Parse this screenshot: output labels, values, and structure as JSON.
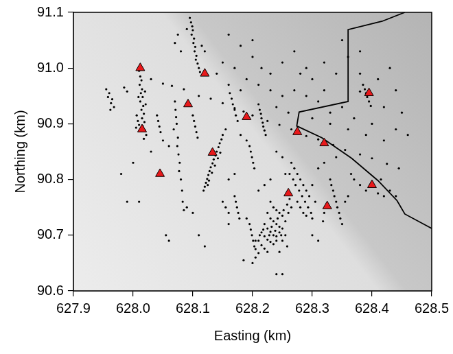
{
  "chart_data": {
    "type": "scatter",
    "x_label": "Easting (km)",
    "y_label": "Northing (km)",
    "xlim": [
      627.9,
      628.5
    ],
    "xticks": [
      627.9,
      {
        "value": 628,
        "label": "628.0"
      },
      628.1,
      628.2,
      628.3,
      628.4,
      628.5
    ],
    "ylim": [
      90.6,
      91.1
    ],
    "yticks": [
      90.6,
      90.7,
      90.8,
      90.9,
      {
        "value": 91,
        "label": "91.0"
      },
      91.1
    ],
    "grid": false,
    "series": [
      {
        "type": "scatter",
        "color": "#000000",
        "marker": "circle",
        "x": [
          628.01,
          628.012,
          628.014,
          628.011,
          628.015,
          628.013,
          628.016,
          628.012,
          628.017,
          628.014,
          628.018,
          628.015,
          628.019,
          628.016,
          628.02,
          628.008,
          628.01,
          628.005,
          628.022,
          628.018,
          628.02,
          628.009,
          628.021,
          628.006,
          627.955,
          627.96,
          627.958,
          627.965,
          627.963,
          627.968,
          627.962,
          627.985,
          627.99,
          628.095,
          628.097,
          628.099,
          628.1,
          628.098,
          628.102,
          628.101,
          628.104,
          628.103,
          628.106,
          628.105,
          628.108,
          628.11,
          628.112,
          628.09,
          628.115,
          628.12,
          628.075,
          628.07,
          628.08,
          628.03,
          628.05,
          628.065,
          628.085,
          628.11,
          628.13,
          628.15,
          628.17,
          628.185,
          628.2,
          628.225,
          628.245,
          628.265,
          628.29,
          628.31,
          628.335,
          628.355,
          628.38,
          628.4,
          628.425,
          628.445,
          628.16,
          628.18,
          628.2,
          628.215,
          628.23,
          628.25,
          628.27,
          628.29,
          628.3,
          628.32,
          628.34,
          628.36,
          628.38,
          628.41,
          628.44,
          628.43,
          628.42,
          628.45,
          628.4,
          628.37,
          628.35,
          628.33,
          628.31,
          628.29,
          628.27,
          628.25,
          628.23,
          628.21,
          628.19,
          628.17,
          628.15,
          628.14,
          628.26,
          628.24,
          628.3,
          628.36,
          628.33,
          628.39,
          628.42,
          628.28,
          628.32,
          628.35,
          628.38,
          628.2,
          628.18,
          628.16,
          628.44,
          628.46,
          628.385,
          628.388,
          628.39,
          628.392,
          628.395,
          628.398,
          628.38,
          628.21,
          628.212,
          628.214,
          628.215,
          628.217,
          628.218,
          628.22,
          628.222,
          628.162,
          628.165,
          628.167,
          628.17,
          628.172,
          628.175,
          628.07,
          628.071,
          628.072,
          628.073,
          628.068,
          628.075,
          628.074,
          628.076,
          628.078,
          628.077,
          628.08,
          628.082,
          628.083,
          628.085,
          628.04,
          628.042,
          628.044,
          628.046,
          628.15,
          628.148,
          628.145,
          628.143,
          628.14,
          628.138,
          628.135,
          628.133,
          628.13,
          628.128,
          628.126,
          628.124,
          628.122,
          628.12,
          628.118,
          628.142,
          628.137,
          628.132,
          628.127,
          628.146,
          628.125,
          628.155,
          628.1,
          628.102,
          628.104,
          628.106,
          628.108,
          628.195,
          628.197,
          628.199,
          628.201,
          628.203,
          628.17,
          628.172,
          628.174,
          628.176,
          628.178,
          628.16,
          628.23,
          628.235,
          628.24,
          628.245,
          628.25,
          628.225,
          628.23,
          628.235,
          628.24,
          628.245,
          628.25,
          628.255,
          628.22,
          628.225,
          628.23,
          628.235,
          628.24,
          628.245,
          628.215,
          628.22,
          628.225,
          628.23,
          628.235,
          628.24,
          628.21,
          628.215,
          628.22,
          628.225,
          628.205,
          628.21,
          628.248,
          628.252,
          628.258,
          628.262,
          628.228,
          628.232,
          628.238,
          628.218,
          628.242,
          628.26,
          628.265,
          628.212,
          628.205,
          628.2,
          628.195,
          628.197,
          628.199,
          628.201,
          628.203,
          628.205,
          628.19,
          628.185,
          628.25,
          628.255,
          628.258,
          628.245,
          628.27,
          628.275,
          628.28,
          628.285,
          628.29,
          628.272,
          628.278,
          628.283,
          628.288,
          628.293,
          628.28,
          628.285,
          628.29,
          628.275,
          628.295,
          628.3,
          628.268,
          628.265,
          628.262,
          628.298,
          628.305,
          628.3,
          628.33,
          628.332,
          628.335,
          628.337,
          628.34,
          628.342,
          628.345,
          628.347,
          628.35,
          628.355,
          628.36,
          628.32,
          628.318,
          628.37,
          628.38,
          628.39,
          628.41,
          628.42,
          628.43,
          628.44,
          628.415,
          628.365,
          627.98,
          627.99,
          628.01,
          628.055,
          628.06,
          628.09,
          628.1,
          628.11,
          628.12,
          628.15,
          628.155,
          628.16,
          628.24,
          628.25,
          628.3,
          628.31,
          628.0,
          628.03,
          628.05,
          628.06,
          628.16,
          628.17,
          628.18,
          628.19,
          628.24,
          628.25,
          628.255,
          628.23,
          628.22,
          628.21,
          628.31,
          628.32,
          628.34
        ],
        "values": [
          90.995,
          90.985,
          90.978,
          90.97,
          90.962,
          90.955,
          90.948,
          90.94,
          90.932,
          90.925,
          90.918,
          90.91,
          90.903,
          90.896,
          90.888,
          90.905,
          90.898,
          90.893,
          90.88,
          90.873,
          90.958,
          90.948,
          90.935,
          90.915,
          90.962,
          90.955,
          90.948,
          90.944,
          90.937,
          90.93,
          90.925,
          90.965,
          90.958,
          91.09,
          91.082,
          91.075,
          91.068,
          91.06,
          91.053,
          91.045,
          91.038,
          91.03,
          91.022,
          91.015,
          91.008,
          91.0,
          90.993,
          91.07,
          91.04,
          91.03,
          91.06,
          91.045,
          91.03,
          90.98,
          90.972,
          90.968,
          90.962,
          90.95,
          90.945,
          90.937,
          90.928,
          90.922,
          90.915,
          90.905,
          90.898,
          90.89,
          90.878,
          90.872,
          90.862,
          90.853,
          90.845,
          90.838,
          90.828,
          90.82,
          91.06,
          91.04,
          91.02,
          91.0,
          90.99,
          91.01,
          91.03,
          91.0,
          90.98,
          90.96,
          90.99,
          91.02,
          90.99,
          90.98,
          90.96,
          91.0,
          90.93,
          90.92,
          90.9,
          90.91,
          90.93,
          90.92,
          90.94,
          90.95,
          90.96,
          90.95,
          90.96,
          90.97,
          90.98,
          91.0,
          91.01,
          90.99,
          90.92,
          90.93,
          90.91,
          90.89,
          90.9,
          90.88,
          90.87,
          90.99,
          91.01,
          91.05,
          91.03,
          91.05,
          90.96,
          90.97,
          90.89,
          90.88,
          90.97,
          90.962,
          90.955,
          90.948,
          90.94,
          90.932,
          90.958,
          90.935,
          90.925,
          90.918,
          90.91,
          90.902,
          90.895,
          90.888,
          90.88,
          90.955,
          90.945,
          90.935,
          90.925,
          90.915,
          90.905,
          90.94,
          90.925,
          90.912,
          90.9,
          90.89,
          90.875,
          90.86,
          90.845,
          90.83,
          90.815,
          90.8,
          90.78,
          90.76,
          90.745,
          90.915,
          90.905,
          90.895,
          90.885,
          90.88,
          90.872,
          90.865,
          90.858,
          90.85,
          90.843,
          90.836,
          90.829,
          90.822,
          90.815,
          90.808,
          90.801,
          90.794,
          90.787,
          90.78,
          90.838,
          90.825,
          90.812,
          90.798,
          90.848,
          90.79,
          90.89,
          90.915,
          90.905,
          90.895,
          90.885,
          90.875,
          90.86,
          90.85,
          90.84,
          90.83,
          90.82,
          90.77,
          90.76,
          90.75,
          90.74,
          90.73,
          90.72,
          90.76,
          90.75,
          90.745,
          90.74,
          90.735,
          90.74,
          90.73,
          90.725,
          90.72,
          90.715,
          90.712,
          90.725,
          90.72,
          90.712,
          90.706,
          90.7,
          90.698,
          90.705,
          90.705,
          90.698,
          90.692,
          90.688,
          90.684,
          90.69,
          90.69,
          90.682,
          90.676,
          90.67,
          90.675,
          90.668,
          90.7,
          90.745,
          90.755,
          90.765,
          90.7,
          90.715,
          90.708,
          90.71,
          90.73,
          90.74,
          90.75,
          90.7,
          90.66,
          90.65,
          90.72,
          90.71,
          90.7,
          90.69,
          90.68,
          90.69,
          90.73,
          90.655,
          90.69,
          90.7,
          90.68,
          90.67,
          90.82,
          90.81,
          90.8,
          90.79,
          90.78,
          90.79,
          90.78,
          90.77,
          90.76,
          90.75,
          90.75,
          90.74,
          90.735,
          90.76,
          90.77,
          90.79,
          90.8,
          90.83,
          90.81,
          90.74,
          90.76,
          90.73,
          90.8,
          90.79,
          90.78,
          90.77,
          90.76,
          90.75,
          90.74,
          90.73,
          90.72,
          90.76,
          90.77,
          90.74,
          90.725,
          90.8,
          90.79,
          90.78,
          90.775,
          90.77,
          90.78,
          90.77,
          90.8,
          90.81,
          90.81,
          90.76,
          90.76,
          90.7,
          90.69,
          90.75,
          90.74,
          90.7,
          90.68,
          90.76,
          90.75,
          90.74,
          90.63,
          90.63,
          90.7,
          90.69,
          90.83,
          90.85,
          90.87,
          90.86,
          90.8,
          90.81,
          90.88,
          90.87,
          90.85,
          90.84,
          90.81,
          90.8,
          90.79,
          90.78,
          90.82,
          90.83,
          90.84
        ]
      },
      {
        "type": "line",
        "color": "#000000",
        "line_style": "solid",
        "x": [
          628.455,
          628.417,
          628.36,
          628.36,
          628.278,
          628.274,
          628.316,
          628.366,
          628.41,
          628.442,
          628.455,
          628.5
        ],
        "values": [
          91.1,
          91.084,
          91.069,
          90.94,
          90.921,
          90.896,
          90.875,
          90.838,
          90.798,
          90.762,
          90.738,
          90.712
        ]
      },
      {
        "type": "scatter",
        "color": "#e8191b",
        "marker": "triangle",
        "x": [
          628.012,
          628.015,
          628.045,
          628.092,
          628.12,
          628.133,
          628.19,
          628.26,
          628.275,
          628.32,
          628.325,
          628.395,
          628.4
        ],
        "values": [
          91.0,
          90.89,
          90.81,
          90.935,
          90.99,
          90.848,
          90.912,
          90.775,
          90.885,
          90.865,
          90.752,
          90.955,
          90.79
        ]
      }
    ]
  }
}
